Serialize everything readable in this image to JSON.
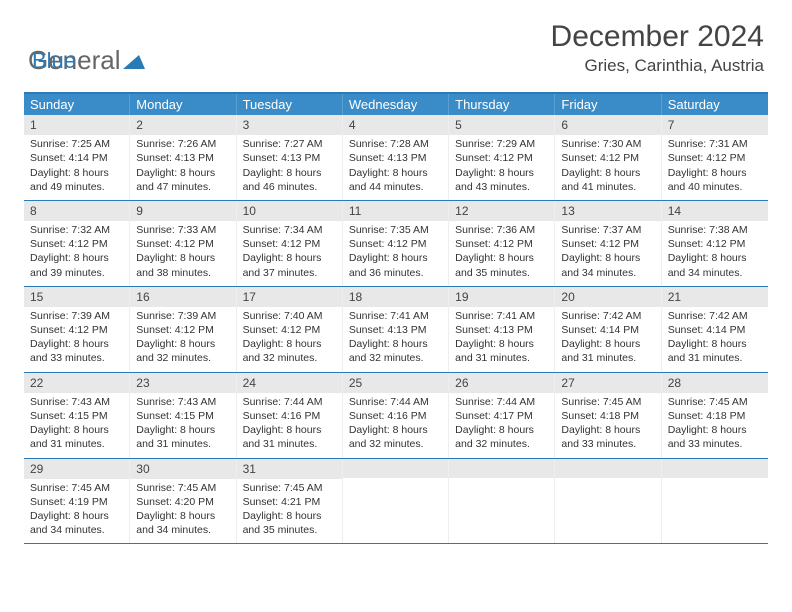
{
  "logo": {
    "part1": "General",
    "part2": "Blue"
  },
  "title": "December 2024",
  "location": "Gries, Carinthia, Austria",
  "colors": {
    "header_bar": "#3a8cc9",
    "accent": "#2a7ab8",
    "band": "#e8e8e8",
    "text": "#333333",
    "bg": "#ffffff"
  },
  "fonts": {
    "title_size": 30,
    "location_size": 17,
    "dow_size": 13,
    "cell_size": 10.5
  },
  "days_of_week": [
    "Sunday",
    "Monday",
    "Tuesday",
    "Wednesday",
    "Thursday",
    "Friday",
    "Saturday"
  ],
  "weeks": [
    [
      {
        "n": "1",
        "sunrise": "Sunrise: 7:25 AM",
        "sunset": "Sunset: 4:14 PM",
        "daylight": "Daylight: 8 hours and 49 minutes."
      },
      {
        "n": "2",
        "sunrise": "Sunrise: 7:26 AM",
        "sunset": "Sunset: 4:13 PM",
        "daylight": "Daylight: 8 hours and 47 minutes."
      },
      {
        "n": "3",
        "sunrise": "Sunrise: 7:27 AM",
        "sunset": "Sunset: 4:13 PM",
        "daylight": "Daylight: 8 hours and 46 minutes."
      },
      {
        "n": "4",
        "sunrise": "Sunrise: 7:28 AM",
        "sunset": "Sunset: 4:13 PM",
        "daylight": "Daylight: 8 hours and 44 minutes."
      },
      {
        "n": "5",
        "sunrise": "Sunrise: 7:29 AM",
        "sunset": "Sunset: 4:12 PM",
        "daylight": "Daylight: 8 hours and 43 minutes."
      },
      {
        "n": "6",
        "sunrise": "Sunrise: 7:30 AM",
        "sunset": "Sunset: 4:12 PM",
        "daylight": "Daylight: 8 hours and 41 minutes."
      },
      {
        "n": "7",
        "sunrise": "Sunrise: 7:31 AM",
        "sunset": "Sunset: 4:12 PM",
        "daylight": "Daylight: 8 hours and 40 minutes."
      }
    ],
    [
      {
        "n": "8",
        "sunrise": "Sunrise: 7:32 AM",
        "sunset": "Sunset: 4:12 PM",
        "daylight": "Daylight: 8 hours and 39 minutes."
      },
      {
        "n": "9",
        "sunrise": "Sunrise: 7:33 AM",
        "sunset": "Sunset: 4:12 PM",
        "daylight": "Daylight: 8 hours and 38 minutes."
      },
      {
        "n": "10",
        "sunrise": "Sunrise: 7:34 AM",
        "sunset": "Sunset: 4:12 PM",
        "daylight": "Daylight: 8 hours and 37 minutes."
      },
      {
        "n": "11",
        "sunrise": "Sunrise: 7:35 AM",
        "sunset": "Sunset: 4:12 PM",
        "daylight": "Daylight: 8 hours and 36 minutes."
      },
      {
        "n": "12",
        "sunrise": "Sunrise: 7:36 AM",
        "sunset": "Sunset: 4:12 PM",
        "daylight": "Daylight: 8 hours and 35 minutes."
      },
      {
        "n": "13",
        "sunrise": "Sunrise: 7:37 AM",
        "sunset": "Sunset: 4:12 PM",
        "daylight": "Daylight: 8 hours and 34 minutes."
      },
      {
        "n": "14",
        "sunrise": "Sunrise: 7:38 AM",
        "sunset": "Sunset: 4:12 PM",
        "daylight": "Daylight: 8 hours and 34 minutes."
      }
    ],
    [
      {
        "n": "15",
        "sunrise": "Sunrise: 7:39 AM",
        "sunset": "Sunset: 4:12 PM",
        "daylight": "Daylight: 8 hours and 33 minutes."
      },
      {
        "n": "16",
        "sunrise": "Sunrise: 7:39 AM",
        "sunset": "Sunset: 4:12 PM",
        "daylight": "Daylight: 8 hours and 32 minutes."
      },
      {
        "n": "17",
        "sunrise": "Sunrise: 7:40 AM",
        "sunset": "Sunset: 4:12 PM",
        "daylight": "Daylight: 8 hours and 32 minutes."
      },
      {
        "n": "18",
        "sunrise": "Sunrise: 7:41 AM",
        "sunset": "Sunset: 4:13 PM",
        "daylight": "Daylight: 8 hours and 32 minutes."
      },
      {
        "n": "19",
        "sunrise": "Sunrise: 7:41 AM",
        "sunset": "Sunset: 4:13 PM",
        "daylight": "Daylight: 8 hours and 31 minutes."
      },
      {
        "n": "20",
        "sunrise": "Sunrise: 7:42 AM",
        "sunset": "Sunset: 4:14 PM",
        "daylight": "Daylight: 8 hours and 31 minutes."
      },
      {
        "n": "21",
        "sunrise": "Sunrise: 7:42 AM",
        "sunset": "Sunset: 4:14 PM",
        "daylight": "Daylight: 8 hours and 31 minutes."
      }
    ],
    [
      {
        "n": "22",
        "sunrise": "Sunrise: 7:43 AM",
        "sunset": "Sunset: 4:15 PM",
        "daylight": "Daylight: 8 hours and 31 minutes."
      },
      {
        "n": "23",
        "sunrise": "Sunrise: 7:43 AM",
        "sunset": "Sunset: 4:15 PM",
        "daylight": "Daylight: 8 hours and 31 minutes."
      },
      {
        "n": "24",
        "sunrise": "Sunrise: 7:44 AM",
        "sunset": "Sunset: 4:16 PM",
        "daylight": "Daylight: 8 hours and 31 minutes."
      },
      {
        "n": "25",
        "sunrise": "Sunrise: 7:44 AM",
        "sunset": "Sunset: 4:16 PM",
        "daylight": "Daylight: 8 hours and 32 minutes."
      },
      {
        "n": "26",
        "sunrise": "Sunrise: 7:44 AM",
        "sunset": "Sunset: 4:17 PM",
        "daylight": "Daylight: 8 hours and 32 minutes."
      },
      {
        "n": "27",
        "sunrise": "Sunrise: 7:45 AM",
        "sunset": "Sunset: 4:18 PM",
        "daylight": "Daylight: 8 hours and 33 minutes."
      },
      {
        "n": "28",
        "sunrise": "Sunrise: 7:45 AM",
        "sunset": "Sunset: 4:18 PM",
        "daylight": "Daylight: 8 hours and 33 minutes."
      }
    ],
    [
      {
        "n": "29",
        "sunrise": "Sunrise: 7:45 AM",
        "sunset": "Sunset: 4:19 PM",
        "daylight": "Daylight: 8 hours and 34 minutes."
      },
      {
        "n": "30",
        "sunrise": "Sunrise: 7:45 AM",
        "sunset": "Sunset: 4:20 PM",
        "daylight": "Daylight: 8 hours and 34 minutes."
      },
      {
        "n": "31",
        "sunrise": "Sunrise: 7:45 AM",
        "sunset": "Sunset: 4:21 PM",
        "daylight": "Daylight: 8 hours and 35 minutes."
      },
      {
        "empty": true
      },
      {
        "empty": true
      },
      {
        "empty": true
      },
      {
        "empty": true
      }
    ]
  ]
}
